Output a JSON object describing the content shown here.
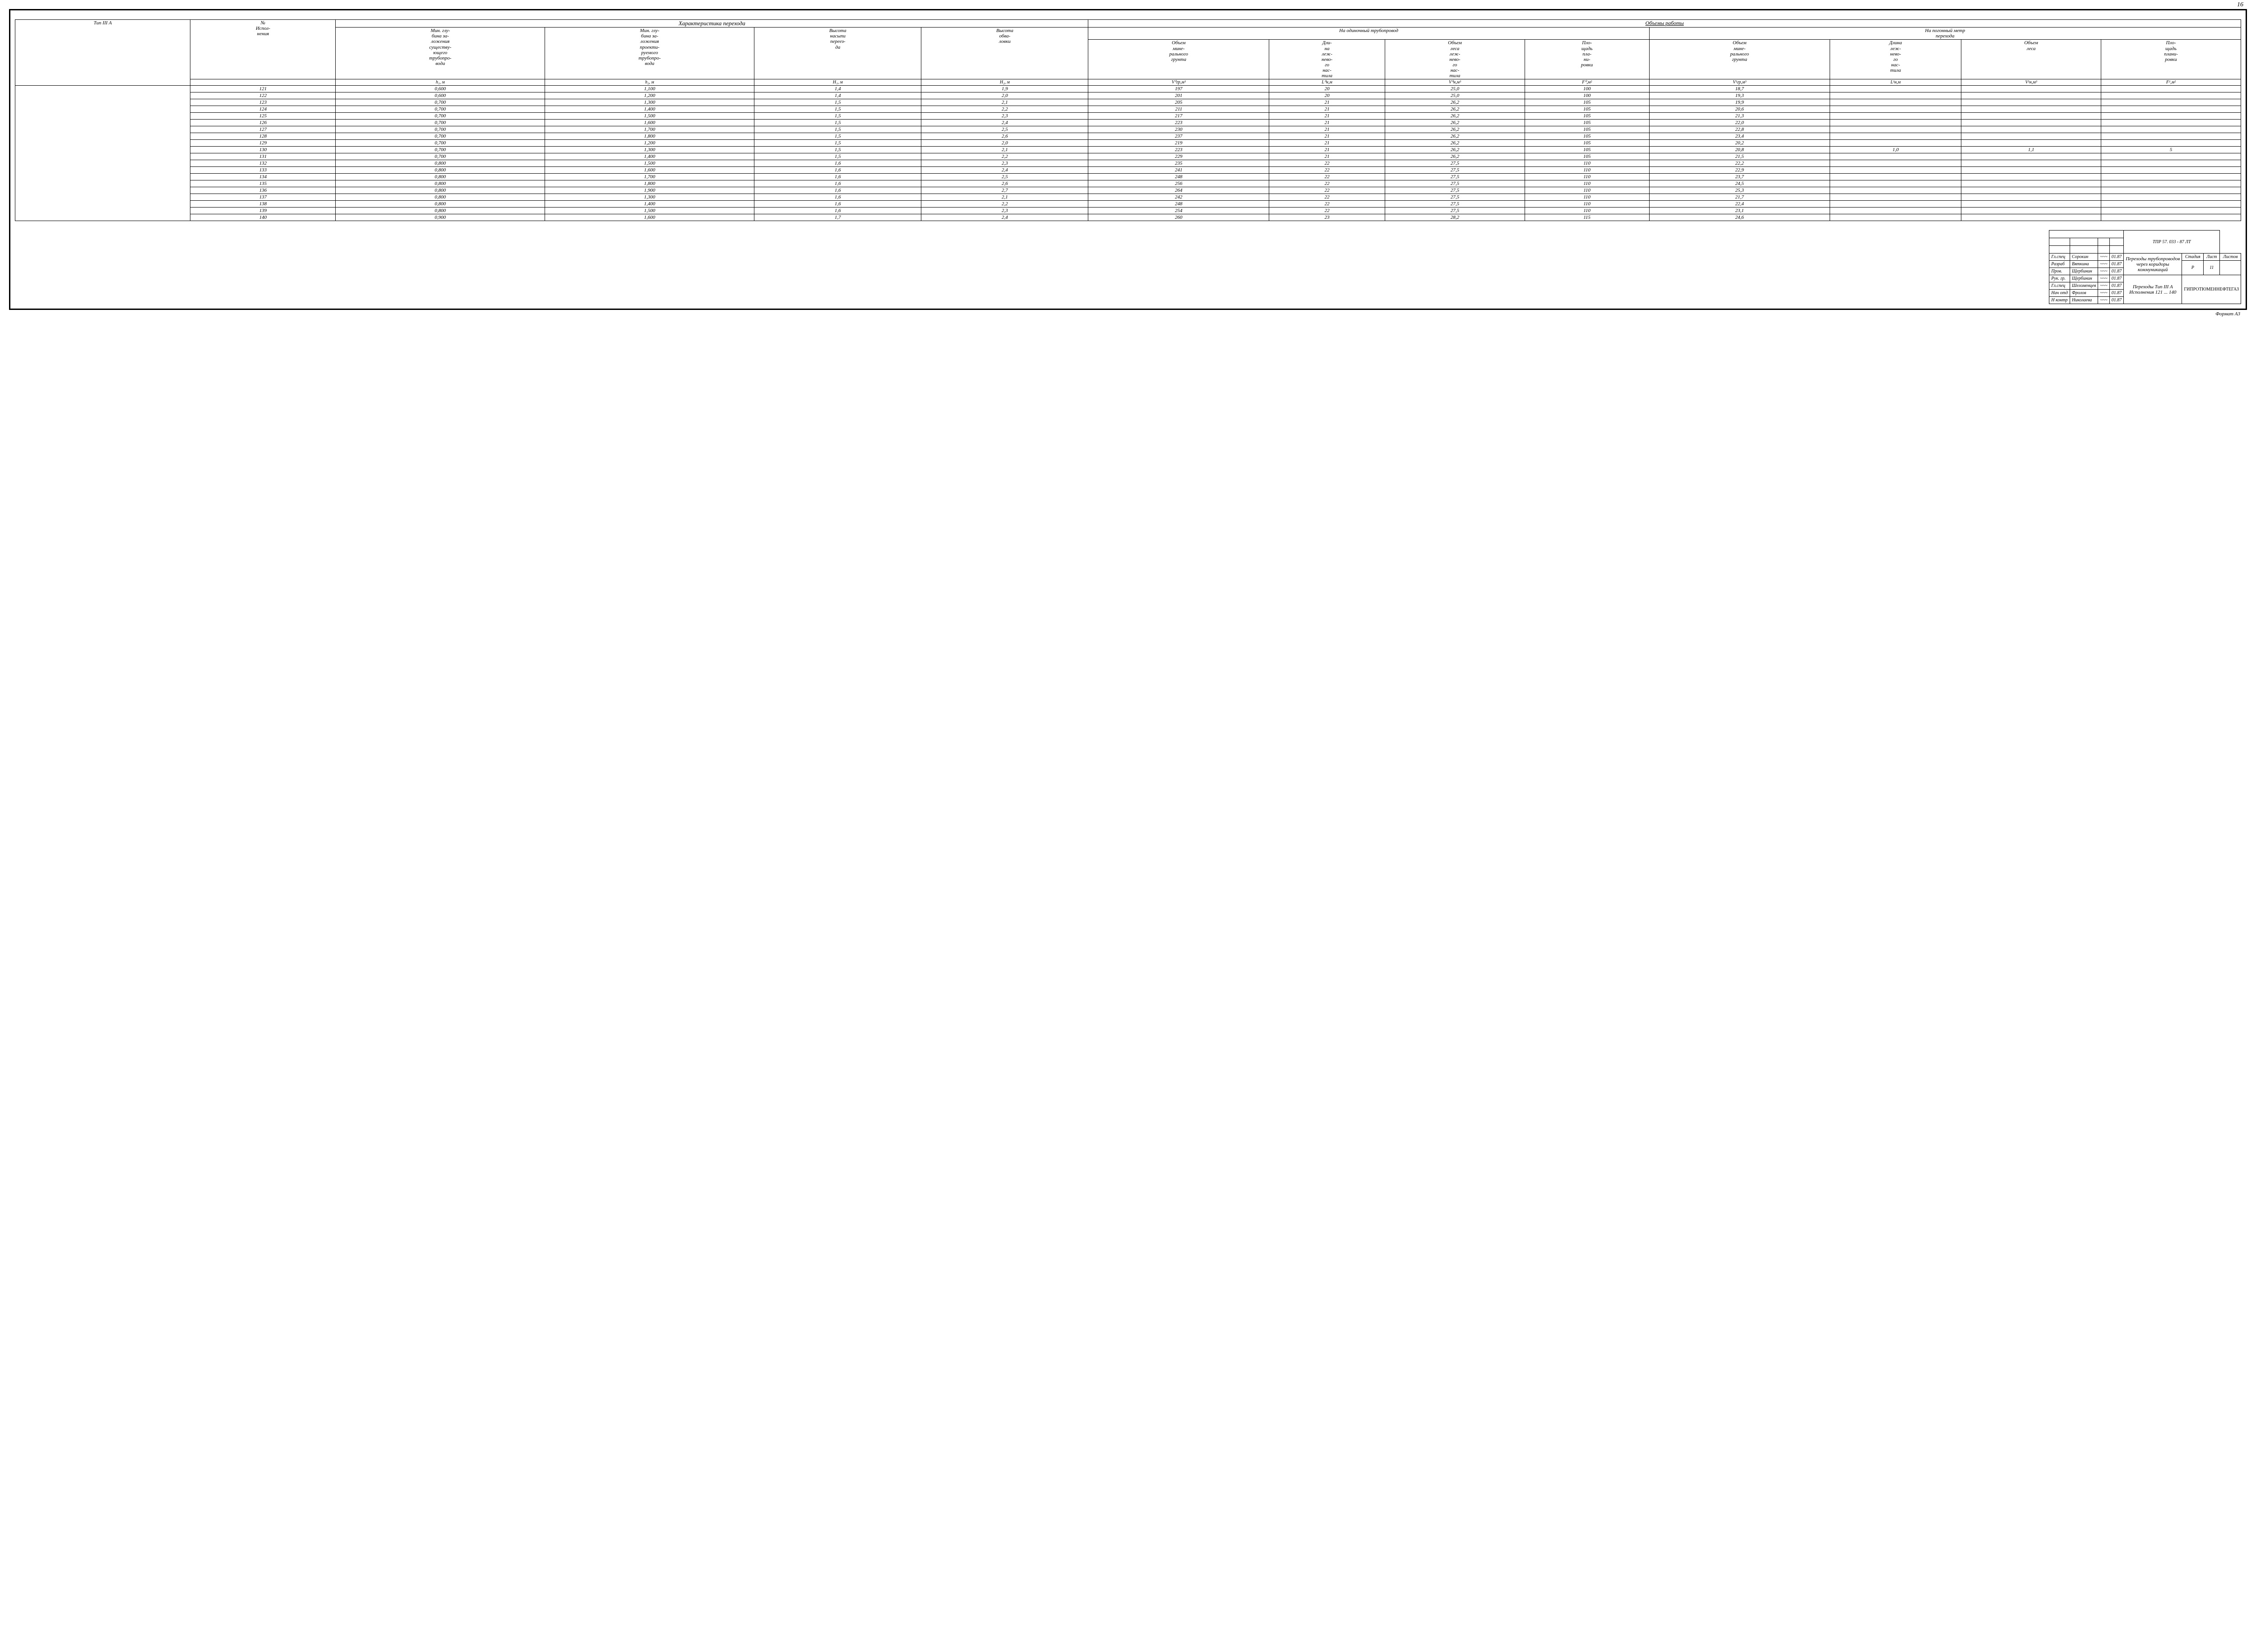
{
  "page_number": "16",
  "table_title": "Тип III А",
  "main_headers": {
    "no_ispol": "№\nИспол-\nнения",
    "char_group": "Характеристика перехода",
    "work_group": "Объемы работы",
    "single_pipe": "На одиночный трубопровод",
    "per_meter": "На погонный метр\nперехода"
  },
  "col_headers": [
    "Мин. глу-\nбина за-\nложения\nсуществу-\nющего\nтрубопро-\nвода",
    "Мин. глу-\nбина за-\nложения\nпроекти-\nруемого\nтрубопро-\nвода",
    "Высота\nнасыпи\nпереез-\nда",
    "Высота\nобва-\nловки",
    "Объем\nмине-\nрального\nгрунта",
    "Дли-\nна\nлеж-\nнево-\nго\nнас-\nтила",
    "Объем\nлеса\nлеж-\nнево-\nго\nнас-\nтила",
    "Пло-\nщадь\nпла-\nни-\nровки",
    "Объем\nмине-\nрального\nгрунта",
    "Длина\nлеж-\nнево-\nго\nнас-\nтила",
    "Объем\nлеса",
    "Пло-\nщадь\nплани-\nровки"
  ],
  "symbols": [
    "h₁, м",
    "h₂, м",
    "H₁, м",
    "H₂, м",
    "V⁰гр,м³",
    "L⁰н,м",
    "V⁰н,м³",
    "F⁰,м²",
    "V¹гр,м³",
    "L¹н,м",
    "V¹н,м³",
    "F¹,м²"
  ],
  "rows": [
    [
      "121",
      "0,600",
      "1,100",
      "1,4",
      "1,9",
      "197",
      "20",
      "25,0",
      "100",
      "18,7",
      "",
      "",
      ""
    ],
    [
      "122",
      "0,600",
      "1,200",
      "1,4",
      "2,0",
      "201",
      "20",
      "25,0",
      "100",
      "19,3",
      "",
      "",
      ""
    ],
    [
      "123",
      "0,700",
      "1,300",
      "1,5",
      "2,1",
      "205",
      "21",
      "26,2",
      "105",
      "19,9",
      "",
      "",
      ""
    ],
    [
      "124",
      "0,700",
      "1,400",
      "1,5",
      "2,2",
      "211",
      "21",
      "26,2",
      "105",
      "20,6",
      "",
      "",
      ""
    ],
    [
      "125",
      "0,700",
      "1,500",
      "1,5",
      "2,3",
      "217",
      "21",
      "26,2",
      "105",
      "21,3",
      "",
      "",
      ""
    ],
    [
      "126",
      "0,700",
      "1,600",
      "1,5",
      "2,4",
      "223",
      "21",
      "26,2",
      "105",
      "22,0",
      "",
      "",
      ""
    ],
    [
      "127",
      "0,700",
      "1,700",
      "1,5",
      "2,5",
      "230",
      "21",
      "26,2",
      "105",
      "22,8",
      "",
      "",
      ""
    ],
    [
      "128",
      "0,700",
      "1,800",
      "1,5",
      "2,6",
      "237",
      "21",
      "26,2",
      "105",
      "23,4",
      "",
      "",
      ""
    ],
    [
      "129",
      "0,700",
      "1,200",
      "1,5",
      "2,0",
      "219",
      "21",
      "26,2",
      "105",
      "20,2",
      "",
      "",
      ""
    ],
    [
      "130",
      "0,700",
      "1,300",
      "1,5",
      "2,1",
      "223",
      "21",
      "26,2",
      "105",
      "20,8",
      "1,0",
      "1,1",
      "5"
    ],
    [
      "131",
      "0,700",
      "1,400",
      "1,5",
      "2,2",
      "229",
      "21",
      "26,2",
      "105",
      "21,5",
      "",
      "",
      ""
    ],
    [
      "132",
      "0,800",
      "1,500",
      "1,6",
      "2,3",
      "235",
      "22",
      "27,5",
      "110",
      "22,2",
      "",
      "",
      ""
    ],
    [
      "133",
      "0,800",
      "1,600",
      "1,6",
      "2,4",
      "241",
      "22",
      "27,5",
      "110",
      "22,9",
      "",
      "",
      ""
    ],
    [
      "134",
      "0,800",
      "1,700",
      "1,6",
      "2,5",
      "248",
      "22",
      "27,5",
      "110",
      "23,7",
      "",
      "",
      ""
    ],
    [
      "135",
      "0,800",
      "1,800",
      "1,6",
      "2,6",
      "256",
      "22",
      "27,5",
      "110",
      "24,5",
      "",
      "",
      ""
    ],
    [
      "136",
      "0,800",
      "1,900",
      "1,6",
      "2,7",
      "264",
      "22",
      "27,5",
      "110",
      "25,3",
      "",
      "",
      ""
    ],
    [
      "137",
      "0,800",
      "1,300",
      "1,6",
      "2,1",
      "242",
      "22",
      "27,5",
      "110",
      "21,7",
      "",
      "",
      ""
    ],
    [
      "138",
      "0,800",
      "1,400",
      "1,6",
      "2,2",
      "248",
      "22",
      "27,5",
      "110",
      "22,4",
      "",
      "",
      ""
    ],
    [
      "139",
      "0,800",
      "1,500",
      "1,6",
      "2,3",
      "254",
      "22",
      "27,5",
      "110",
      "23,1",
      "",
      "",
      ""
    ],
    [
      "140",
      "0,900",
      "1,600",
      "1,7",
      "2,4",
      "260",
      "23",
      "28,2",
      "115",
      "24,6",
      "",
      "",
      ""
    ]
  ],
  "title_block": {
    "doc_code": "ТПР 57. 033 - 87  ЛТ",
    "roles": [
      "Гл.спец",
      "Разраб",
      "Пров.",
      "Рук. гр.",
      "Гл.спец",
      "Нач отд",
      "Н контр"
    ],
    "names": [
      "Сорокин",
      "Вяткина",
      "Щербинин",
      "Щербинин",
      "Шеломенцев",
      "Фролов",
      "Николаева"
    ],
    "dates": [
      "01.87",
      "01.87",
      "01.87",
      "01.87",
      "01.87",
      "01.87",
      "01.87"
    ],
    "project_title": "Переходы трубопроводов\nчерез коридоры\nкоммуникаций",
    "sheet_title": "Переходы Тип III А\nИсполнения 121 ... 140",
    "stadia_label": "Стадия",
    "list_label": "Лист",
    "listov_label": "Листов",
    "stadia": "Р",
    "list": "11",
    "listov": "",
    "org": "ГИПРОТЮМЕННЕФТЕГАЗ"
  },
  "format": "Формат А3"
}
